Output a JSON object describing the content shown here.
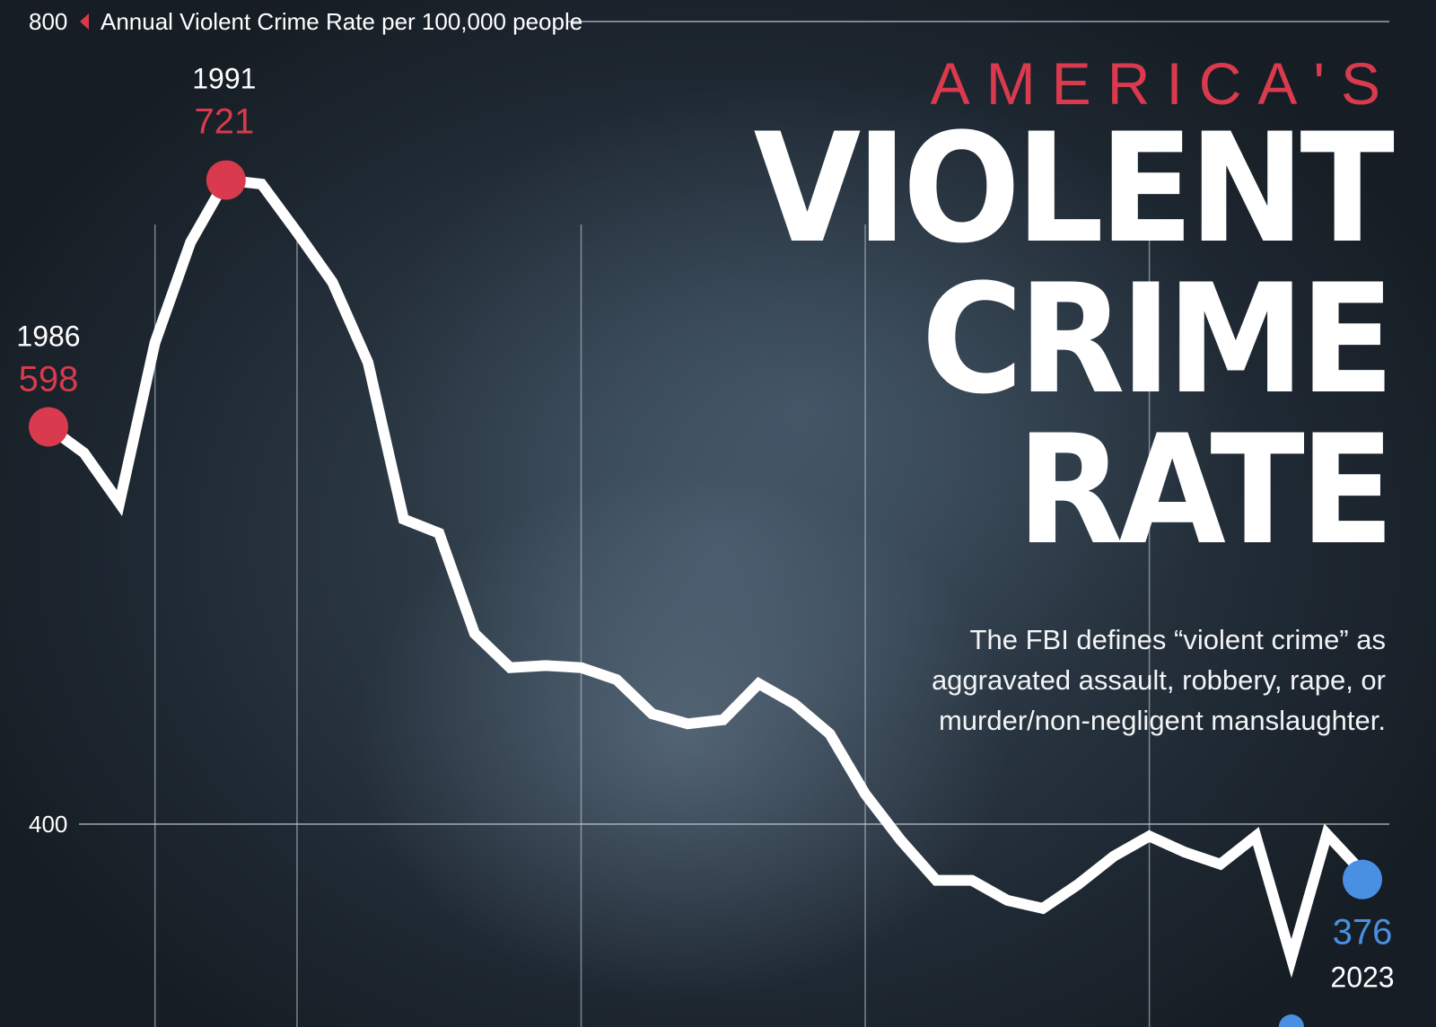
{
  "title": {
    "kicker": "AMERICA'S",
    "lines": [
      "VIOLENT",
      "CRIME",
      "RATE"
    ]
  },
  "description": "The FBI defines “violent crime” as aggravated assault, robbery, rape, or murder/non-negligent manslaughter.",
  "colors": {
    "accent_red": "#d93a4d",
    "accent_blue": "#4a90e2",
    "line": "#ffffff",
    "grid": "#c8d4de"
  },
  "chart_data": {
    "type": "line",
    "ylabel": "Annual Violent Crime Rate per 100,000 people",
    "y_ticks": [
      {
        "value": 800,
        "label": "800"
      },
      {
        "value": 400,
        "label": "400"
      }
    ],
    "ylim": [
      350,
      800
    ],
    "xlim": [
      1986,
      2023
    ],
    "x_grid_years": [
      1989,
      1993,
      2001,
      2009,
      2017
    ],
    "grid": true,
    "series": [
      {
        "name": "",
        "x": [
          1986,
          1987,
          1988,
          1989,
          1990,
          1991,
          1992,
          1993,
          1994,
          1995,
          1996,
          1997,
          1998,
          1999,
          2000,
          2001,
          2002,
          2003,
          2004,
          2005,
          2006,
          2007,
          2008,
          2009,
          2010,
          2011,
          2012,
          2013,
          2014,
          2015,
          2016,
          2017,
          2018,
          2019,
          2020,
          2021,
          2022,
          2023
        ],
        "y": [
          598,
          585,
          560,
          640,
          690,
          721,
          719,
          695,
          670,
          630,
          552,
          545,
          495,
          478,
          479,
          478,
          472,
          455,
          450,
          452,
          470,
          460,
          445,
          415,
          392,
          372,
          372,
          362,
          358,
          370,
          384,
          394,
          386,
          380,
          394,
          333,
          395,
          376
        ]
      }
    ],
    "annotations": [
      {
        "year": "1986",
        "value": "598",
        "color": "red",
        "side": "left"
      },
      {
        "year": "1991",
        "value": "721",
        "color": "red",
        "side": "top"
      },
      {
        "year": "2023",
        "value": "376",
        "color": "blue",
        "side": "bottom"
      }
    ]
  }
}
